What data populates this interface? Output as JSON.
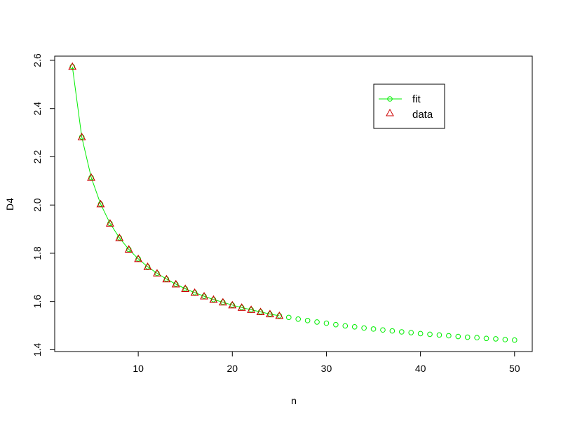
{
  "chart_data": {
    "type": "line",
    "title": "",
    "xlabel": "n",
    "ylabel": "D4",
    "xlim": [
      1.12,
      51.88
    ],
    "ylim": [
      1.3925,
      2.6174
    ],
    "x_ticks": [
      10,
      20,
      30,
      40,
      50
    ],
    "x_tick_labels": [
      "10",
      "20",
      "30",
      "40",
      "50"
    ],
    "y_ticks": [
      1.4,
      1.6,
      1.8,
      2.0,
      2.2,
      2.4,
      2.6
    ],
    "y_tick_labels": [
      "1.4",
      "1.6",
      "1.8",
      "2.0",
      "2.2",
      "2.4",
      "2.6"
    ],
    "grid": false,
    "legend_position": "top-right",
    "legend": [
      {
        "label": "fit",
        "color": "#00ee00",
        "marker": "circle",
        "line": true
      },
      {
        "label": "data",
        "color": "#cc0000",
        "marker": "triangle",
        "line": false
      }
    ],
    "series": [
      {
        "name": "fit",
        "color": "#00ee00",
        "style": "line-with-circles",
        "x": [
          3,
          4,
          5,
          6,
          7,
          8,
          9,
          10,
          11,
          12,
          13,
          14,
          15,
          16,
          17,
          18,
          19,
          20,
          21,
          22,
          23,
          24,
          25,
          26,
          27,
          28,
          29,
          30,
          31,
          32,
          33,
          34,
          35,
          36,
          37,
          38,
          39,
          40,
          41,
          42,
          43,
          44,
          45,
          46,
          47,
          48,
          49,
          50
        ],
        "y": [
          2.574,
          2.282,
          2.114,
          2.004,
          1.924,
          1.864,
          1.816,
          1.777,
          1.744,
          1.717,
          1.693,
          1.672,
          1.653,
          1.637,
          1.622,
          1.608,
          1.597,
          1.585,
          1.575,
          1.566,
          1.557,
          1.548,
          1.541,
          1.534,
          1.527,
          1.521,
          1.515,
          1.51,
          1.504,
          1.499,
          1.495,
          1.49,
          1.486,
          1.482,
          1.478,
          1.474,
          1.471,
          1.467,
          1.464,
          1.461,
          1.458,
          1.455,
          1.452,
          1.45,
          1.447,
          1.445,
          1.442,
          1.44
        ]
      },
      {
        "name": "data",
        "color": "#cc0000",
        "style": "triangles",
        "x": [
          3,
          4,
          5,
          6,
          7,
          8,
          9,
          10,
          11,
          12,
          13,
          14,
          15,
          16,
          17,
          18,
          19,
          20,
          21,
          22,
          23,
          24,
          25
        ],
        "y": [
          2.574,
          2.282,
          2.114,
          2.004,
          1.924,
          1.864,
          1.816,
          1.777,
          1.744,
          1.717,
          1.693,
          1.672,
          1.653,
          1.637,
          1.622,
          1.608,
          1.597,
          1.585,
          1.575,
          1.566,
          1.557,
          1.548,
          1.541
        ]
      }
    ]
  }
}
